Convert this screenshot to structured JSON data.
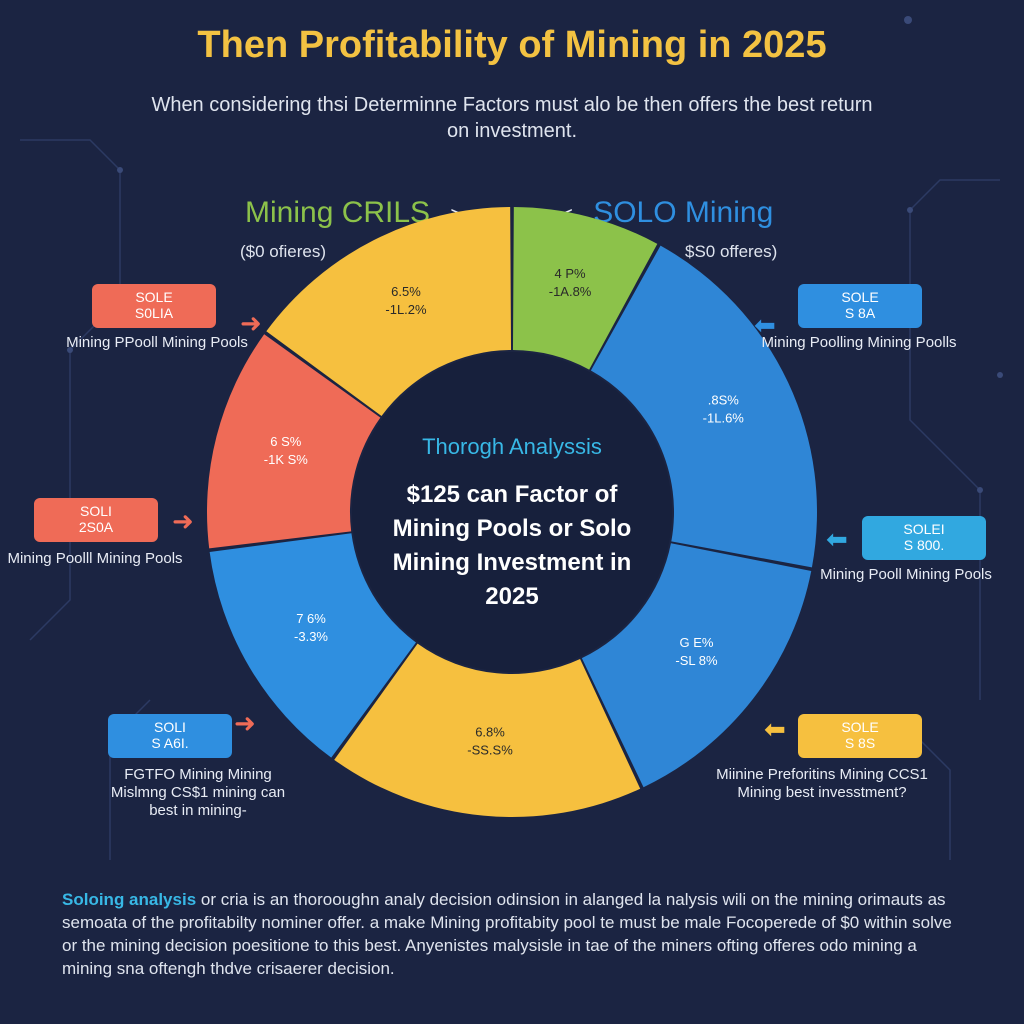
{
  "title": "Then Profitability of Mining in 2025",
  "subtitle": "When considering thsi Determinne Factors must alo be then offers the best return on investment.",
  "left_heading": {
    "text": "Mining CRILS",
    "arrow": ">",
    "sub": "($0 ofieres)"
  },
  "right_heading": {
    "text": "SOLO Mining",
    "arrow": "<",
    "sub": "$S0 offeres)"
  },
  "center": {
    "title": "Thorogh Analyssis",
    "body": "$125 can Factor of Mining Pools or Solo Mining Investment in 2025"
  },
  "badges": [
    {
      "line1": "SOLE",
      "line2": "S0LIA",
      "caption": "Mining PPooll Mining Pools",
      "color": "#ef6b57"
    },
    {
      "line1": "SOLI",
      "line2": "2S0A",
      "caption": "Mining Poolll Mining Pools",
      "color": "#ef6b57"
    },
    {
      "line1": "SOLI",
      "line2": "S A6I.",
      "caption": "FGTFO Mining Mining Mislmng CS$1 mining can best in mining-",
      "color": "#2f8fe0"
    },
    {
      "line1": "SOLE",
      "line2": "S 8A",
      "caption": "Mining Poolling Mining Poolls",
      "color": "#2f8fe0"
    },
    {
      "line1": "SOLEI",
      "line2": "S 800.",
      "caption": "Mining Pooll Mining Pools",
      "color": "#31a8e0"
    },
    {
      "line1": "SOLE",
      "line2": "S 8S",
      "caption": "Miinine Preforitins Mining CCS1 Mining best invesstment?",
      "color": "#f6c03f"
    }
  ],
  "footer": {
    "highlight": "Soloing analysis",
    "text": " or cria is an thorooughn analy decision odinsion in alanged la nalysis wili on the mining orimauts as semoata of the profitabilty nominer offer. a make Mining profitabity pool te must be male Focoperede of $0 within solve or the mining decision poesitione to this best. Anyenistes malysisle in tae of the miners ofting offeres odo mining a mining sna oftengh thdve crisaerer decision."
  },
  "chart_data": {
    "type": "pie",
    "variant": "donut",
    "title": "Then Profitability of Mining in 2025",
    "slices": [
      {
        "label_top": "4 P%",
        "label_bottom": "-1A.8%",
        "value": 8,
        "color": "#8cc24a"
      },
      {
        "label_top": ".8S%",
        "label_bottom": "-1L.6%",
        "value": 20,
        "color": "#2f86d6"
      },
      {
        "label_top": "G E%",
        "label_bottom": "-SL 8%",
        "value": 15,
        "color": "#2f86d6"
      },
      {
        "label_top": "6.8%",
        "label_bottom": "-SS.S%",
        "value": 17,
        "color": "#f6c03f"
      },
      {
        "label_top": "7 6%",
        "label_bottom": "-3.3%",
        "value": 13,
        "color": "#2f8fe0"
      },
      {
        "label_top": "6 S%",
        "label_bottom": "-1K S%",
        "value": 12,
        "color": "#ef6b57"
      },
      {
        "label_top": "6.5%",
        "label_bottom": "-1L.2%",
        "value": 15,
        "color": "#f6c03f"
      }
    ]
  }
}
